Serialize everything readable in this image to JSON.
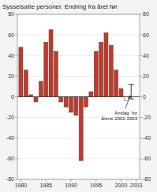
{
  "chart_data": {
    "type": "bar",
    "title": "Sysselsatte personer. Endring fra året før",
    "x": [
      1980,
      1981,
      1982,
      1983,
      1984,
      1985,
      1986,
      1987,
      1988,
      1989,
      1990,
      1991,
      1992,
      1993,
      1994,
      1995,
      1996,
      1997,
      1998,
      1999,
      2000,
      2001,
      2002,
      2003
    ],
    "values": [
      48,
      26,
      2,
      -5,
      15,
      53,
      65,
      44,
      -5,
      -10,
      -15,
      -18,
      -62,
      -10,
      5,
      44,
      53,
      62,
      50,
      26,
      8,
      -4,
      0,
      0
    ],
    "colors": [
      "#c0392b",
      "#c0392b",
      "#c0392b",
      "#c0392b",
      "#c0392b",
      "#c0392b",
      "#c0392b",
      "#c0392b",
      "#c0392b",
      "#c0392b",
      "#c0392b",
      "#c0392b",
      "#c0392b",
      "#c0392b",
      "#c0392b",
      "#c0392b",
      "#c0392b",
      "#c0392b",
      "#c0392b",
      "#c0392b",
      "#c0392b",
      "white",
      "white",
      "white"
    ],
    "xlim": [
      1979.3,
      2003.7
    ],
    "xticks": [
      1980,
      1985,
      1990,
      1995,
      2000,
      2003
    ],
    "ylim": [
      -80,
      80
    ],
    "yticks": [
      -80,
      -60,
      -40,
      -20,
      0,
      20,
      40,
      60,
      80
    ],
    "y2lim": [
      -80,
      80
    ],
    "y2ticks": [
      -80,
      -60,
      -40,
      -20,
      0,
      20,
      40,
      60,
      80
    ],
    "grid": true,
    "annotations": [
      {
        "text": "Anslag  for\nårene 2001-2003",
        "x": 2001.8,
        "y": 2
      }
    ],
    "error_bar": {
      "x": 2002.0,
      "y": 5,
      "error": 7
    }
  }
}
